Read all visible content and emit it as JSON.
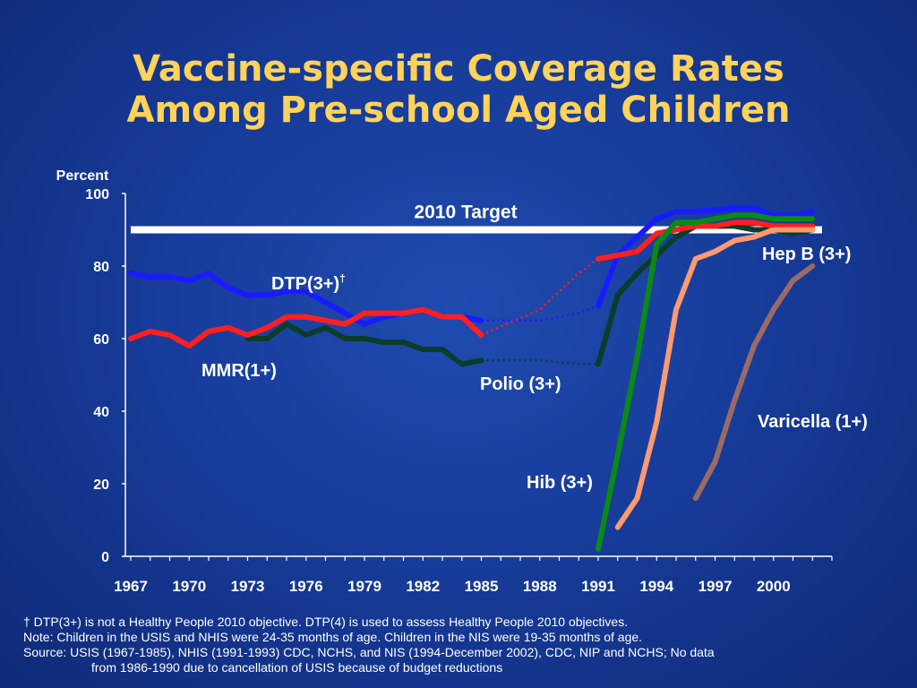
{
  "title": {
    "line1": "Vaccine-specific Coverage Rates",
    "line2": "Among Pre-school Aged Children"
  },
  "chart_data": {
    "type": "line",
    "ylabel": "Percent",
    "ylim": [
      0,
      100
    ],
    "xlim": [
      1967,
      2003
    ],
    "yticks": [
      0,
      20,
      40,
      60,
      80,
      100
    ],
    "xticks": [
      1967,
      1970,
      1973,
      1976,
      1979,
      1982,
      1985,
      1988,
      1991,
      1994,
      1997,
      2000
    ],
    "grid": false,
    "target": {
      "label": "2010 Target",
      "value": 90,
      "color": "#ffffff"
    },
    "series": [
      {
        "name": "DTP(3+)",
        "marker": "†",
        "color": "#1a1aff",
        "values": [
          [
            1967,
            78
          ],
          [
            1968,
            77
          ],
          [
            1969,
            77
          ],
          [
            1970,
            76
          ],
          [
            1971,
            78
          ],
          [
            1972,
            74
          ],
          [
            1973,
            72
          ],
          [
            1974,
            72
          ],
          [
            1975,
            73
          ],
          [
            1976,
            73
          ],
          [
            1977,
            70
          ],
          [
            1978,
            67
          ],
          [
            1979,
            64
          ],
          [
            1980,
            66
          ],
          [
            1981,
            67
          ],
          [
            1982,
            68
          ],
          [
            1983,
            66
          ],
          [
            1984,
            66
          ],
          [
            1985,
            65
          ]
        ],
        "dotted": [
          [
            1985,
            65
          ],
          [
            1988,
            65
          ],
          [
            1990,
            67
          ],
          [
            1991,
            69
          ]
        ],
        "values_late": [
          [
            1991,
            69
          ],
          [
            1992,
            83
          ],
          [
            1993,
            88
          ],
          [
            1994,
            93
          ],
          [
            1995,
            95
          ],
          [
            1996,
            95
          ],
          [
            1997,
            95.5
          ],
          [
            1998,
            96
          ],
          [
            1999,
            96
          ],
          [
            2000,
            94
          ],
          [
            2001,
            94
          ],
          [
            2002,
            95
          ]
        ]
      },
      {
        "name": "MMR(1+)",
        "color": "#ff1f1f",
        "values": [
          [
            1967,
            60
          ],
          [
            1968,
            62
          ],
          [
            1969,
            61
          ],
          [
            1970,
            58
          ],
          [
            1971,
            62
          ],
          [
            1972,
            63
          ],
          [
            1973,
            61
          ],
          [
            1974,
            63
          ],
          [
            1975,
            66
          ],
          [
            1976,
            66
          ],
          [
            1977,
            65
          ],
          [
            1978,
            64
          ],
          [
            1979,
            67
          ],
          [
            1980,
            67
          ],
          [
            1981,
            67
          ],
          [
            1982,
            68
          ],
          [
            1983,
            66
          ],
          [
            1984,
            66
          ],
          [
            1985,
            61
          ]
        ],
        "dotted": [
          [
            1985,
            61
          ],
          [
            1988,
            68
          ],
          [
            1990,
            78
          ],
          [
            1991,
            82
          ]
        ],
        "values_late": [
          [
            1991,
            82
          ],
          [
            1992,
            83
          ],
          [
            1993,
            84
          ],
          [
            1994,
            89
          ],
          [
            1995,
            90
          ],
          [
            1996,
            91
          ],
          [
            1997,
            91
          ],
          [
            1998,
            92
          ],
          [
            1999,
            92
          ],
          [
            2000,
            91
          ],
          [
            2001,
            91
          ],
          [
            2002,
            91
          ]
        ]
      },
      {
        "name": "Polio (3+)",
        "color": "#0b3d2a",
        "values": [
          [
            1973,
            60
          ],
          [
            1974,
            60
          ],
          [
            1975,
            64
          ],
          [
            1976,
            61
          ],
          [
            1977,
            63
          ],
          [
            1978,
            60
          ],
          [
            1979,
            60
          ],
          [
            1980,
            59
          ],
          [
            1981,
            59
          ],
          [
            1982,
            57
          ],
          [
            1983,
            57
          ],
          [
            1984,
            53
          ],
          [
            1985,
            54
          ]
        ],
        "dotted": [
          [
            1985,
            54
          ],
          [
            1988,
            54
          ],
          [
            1990,
            53
          ],
          [
            1991,
            53
          ]
        ],
        "values_late": [
          [
            1991,
            53
          ],
          [
            1992,
            72
          ],
          [
            1993,
            78
          ],
          [
            1994,
            83
          ],
          [
            1995,
            88
          ],
          [
            1996,
            91
          ],
          [
            1997,
            91
          ],
          [
            1998,
            91
          ],
          [
            1999,
            90
          ],
          [
            2000,
            90
          ],
          [
            2001,
            89
          ],
          [
            2002,
            90
          ]
        ]
      },
      {
        "name": "Hib (3+)",
        "color": "#0a8a14",
        "values": [
          [
            1991,
            2
          ],
          [
            1992,
            28
          ],
          [
            1993,
            55
          ],
          [
            1994,
            86
          ],
          [
            1995,
            92
          ],
          [
            1996,
            92
          ],
          [
            1997,
            93
          ],
          [
            1998,
            94
          ],
          [
            1999,
            94
          ],
          [
            2000,
            93
          ],
          [
            2001,
            93
          ],
          [
            2002,
            93
          ]
        ]
      },
      {
        "name": "Hep B (3+)",
        "color": "#ff9a6e",
        "values": [
          [
            1992,
            8
          ],
          [
            1993,
            16
          ],
          [
            1994,
            37
          ],
          [
            1995,
            68
          ],
          [
            1996,
            82
          ],
          [
            1997,
            84
          ],
          [
            1998,
            87
          ],
          [
            1999,
            88
          ],
          [
            2000,
            90
          ],
          [
            2001,
            90
          ],
          [
            2002,
            90
          ]
        ]
      },
      {
        "name": "Varicella (1+)",
        "color": "#9b6a65",
        "values": [
          [
            1996,
            16
          ],
          [
            1997,
            26
          ],
          [
            1998,
            43
          ],
          [
            1999,
            58
          ],
          [
            2000,
            68
          ],
          [
            2001,
            76
          ],
          [
            2002,
            80
          ]
        ]
      }
    ]
  },
  "footnotes": {
    "line1": "† DTP(3+) is not a Healthy People 2010 objective.  DTP(4) is used to assess Healthy People 2010 objectives.",
    "line2": "Note:  Children in the USIS and NHIS were 24-35 months of age.  Children in the NIS were 19-35 months of age.",
    "line3": "Source: USIS (1967-1985), NHIS (1991-1993) CDC, NCHS, and NIS (1994-December 2002), CDC, NIP and NCHS; No data",
    "line4": "from 1986-1990 due to cancellation of USIS because of budget reductions"
  }
}
